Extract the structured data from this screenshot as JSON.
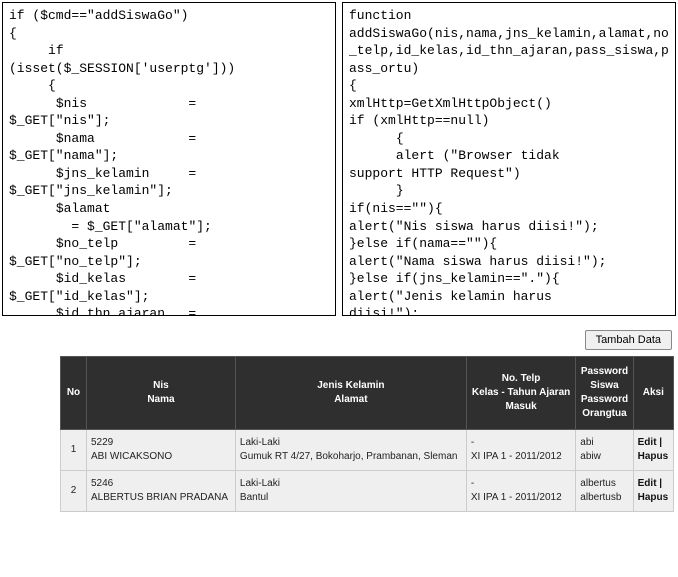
{
  "code_left": "if ($cmd==\"addSiswaGo\")\n{\n     if\n(isset($_SESSION['userptg']))\n     {\n      $nis             =\n$_GET[\"nis\"];\n      $nama            =\n$_GET[\"nama\"];\n      $jns_kelamin     =\n$_GET[\"jns_kelamin\"];\n      $alamat\n        = $_GET[\"alamat\"];\n      $no_telp         =\n$_GET[\"no_telp\"];\n      $id_kelas        =\n$_GET[\"id_kelas\"];\n      $id_thn_ajaran   =\n$_GET[\"id_thn_ajaran\"];\n      $pass_siswa      =",
  "code_right": "function\naddSiswaGo(nis,nama,jns_kelamin,alamat,no_telp,id_kelas,id_thn_ajaran,pass_siswa,pass_ortu)\n{\nxmlHttp=GetXmlHttpObject()\nif (xmlHttp==null)\n      {\n      alert (\"Browser tidak\nsupport HTTP Request\")\n      }\nif(nis==\"\"){\nalert(\"Nis siswa harus diisi!\");\n}else if(nama==\"\"){\nalert(\"Nama siswa harus diisi!\");\n}else if(jns_kelamin==\".\"){\nalert(\"Jenis kelamin harus\ndiisi!\");\n}else if(alamat==\"\"){\nalert(\"Alamat siswa harus",
  "toolbar": {
    "tambah_label": "Tambah Data"
  },
  "headers": {
    "no": "No",
    "nis": "Nis",
    "nama": "Nama",
    "jenis": "Jenis Kelamin",
    "alamat": "Alamat",
    "telp": "No. Telp",
    "kelas": "Kelas - Tahun Ajaran",
    "masuk": "Masuk",
    "pwds": "Password",
    "siswa": "Siswa",
    "pwd2": "Password",
    "ortu": "Orangtua",
    "aksi": "Aksi"
  },
  "aksi": {
    "edit": "Edit",
    "sep": " | ",
    "hapus": "Hapus"
  },
  "rows": [
    {
      "no": "1",
      "nis": "5229",
      "nama": "ABI WICAKSONO",
      "jenis": "Laki-Laki",
      "alamat": "Gumuk RT 4/27, Bokoharjo, Prambanan, Sleman",
      "telp": "-",
      "kelas": "XI IPA 1 - 2011/2012",
      "pw1": "abi",
      "pw2": "abiw"
    },
    {
      "no": "2",
      "nis": "5246",
      "nama": "ALBERTUS BRIAN PRADANA",
      "jenis": "Laki-Laki",
      "alamat": "Bantul",
      "telp": "-",
      "kelas": "XI IPA 1 - 2011/2012",
      "pw1": "albertus",
      "pw2": "albertusb"
    }
  ]
}
